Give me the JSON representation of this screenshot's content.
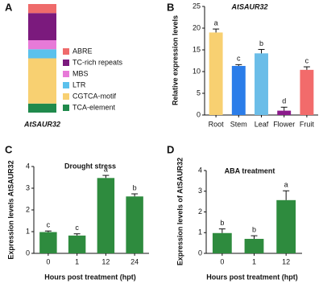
{
  "chart_data": [
    {
      "type": "bar",
      "stacked": true,
      "panel_label": "A",
      "categories": [
        "AtSAUR32"
      ],
      "series": [
        {
          "name": "ABRE",
          "color": "#ef6b6b",
          "values": [
            1
          ]
        },
        {
          "name": "TC-rich repeats",
          "color": "#7b1a7d",
          "values": [
            3
          ]
        },
        {
          "name": "MBS",
          "color": "#e77ad8",
          "values": [
            1
          ]
        },
        {
          "name": "LTR",
          "color": "#5bc1ec",
          "values": [
            1
          ]
        },
        {
          "name": "CGTCA-motif",
          "color": "#f8d071",
          "values": [
            5
          ]
        },
        {
          "name": "TCA-element",
          "color": "#1f8a4c",
          "values": [
            1
          ]
        }
      ]
    },
    {
      "type": "bar",
      "panel_label": "B",
      "title": "AtSAUR32",
      "y_label": "Relative expression levels",
      "categories": [
        "Root",
        "Stem",
        "Leaf",
        "Flower",
        "Fruit"
      ],
      "values": [
        19,
        11.3,
        14.2,
        1,
        10.4
      ],
      "errors": [
        0.8,
        0.3,
        0.9,
        0.8,
        0.7
      ],
      "letters": [
        "a",
        "c",
        "b",
        "d",
        "c"
      ],
      "colors": [
        "#f8d071",
        "#2b7de9",
        "#6bbde8",
        "#8b1a8b",
        "#f26b6b"
      ],
      "ylim": [
        0,
        25
      ],
      "yticks": [
        0,
        5,
        10,
        15,
        20,
        25
      ]
    },
    {
      "type": "bar",
      "panel_label": "C",
      "title": "Drought stress",
      "y_label": "Expression levels AtSAUR32",
      "x_label": "Hours post treatment (hpt)",
      "categories": [
        "0",
        "1",
        "12",
        "24"
      ],
      "values": [
        0.98,
        0.82,
        3.47,
        2.62
      ],
      "errors": [
        0.05,
        0.08,
        0.12,
        0.12
      ],
      "letters": [
        "c",
        "c",
        "a",
        "b"
      ],
      "color": "#2e8b3e",
      "ylim": [
        0,
        4
      ],
      "yticks": [
        0,
        1,
        2,
        3,
        4
      ]
    },
    {
      "type": "bar",
      "panel_label": "D",
      "title": "ABA treatment",
      "y_label": "Expression levels of AtSAUR32",
      "x_label": "Hours post treatment (hpt)",
      "categories": [
        "0",
        "1",
        "12"
      ],
      "values": [
        0.98,
        0.7,
        2.57
      ],
      "errors": [
        0.2,
        0.15,
        0.45
      ],
      "letters": [
        "b",
        "b",
        "a"
      ],
      "color": "#2e8b3e",
      "ylim": [
        0,
        4
      ],
      "yticks": [
        0,
        1,
        2,
        3,
        4
      ]
    }
  ]
}
